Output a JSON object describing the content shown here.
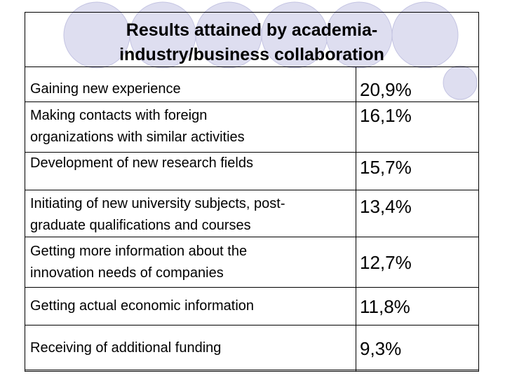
{
  "title_lines": [
    "Results attained by academia-",
    "industry/business collaboration"
  ],
  "colors": {
    "circle_fill": "#dedef0",
    "circle_stroke": "#c4c4e2",
    "border": "#000000",
    "text": "#000000"
  },
  "rows": [
    {
      "label_lines": [
        "Gaining new experience"
      ],
      "value": "20,9%"
    },
    {
      "label_lines": [
        "Making contacts with foreign",
        "organizations with similar activities"
      ],
      "value": "16,1%"
    },
    {
      "label_lines": [
        "Development of new research fields"
      ],
      "value": "15,7%"
    },
    {
      "label_lines": [
        "Initiating of new university subjects, post-",
        "graduate qualifications and courses"
      ],
      "value": "13,4%"
    },
    {
      "label_lines": [
        "Getting more information about the",
        "innovation needs of companies"
      ],
      "value": "12,7%"
    },
    {
      "label_lines": [
        "Getting actual economic information"
      ],
      "value": "11,8%"
    },
    {
      "label_lines": [
        "Receiving of additional funding"
      ],
      "value": "9,3%"
    }
  ]
}
